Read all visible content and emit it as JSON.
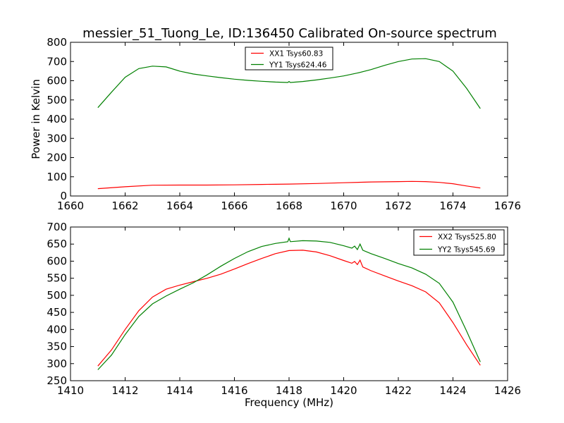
{
  "figure": {
    "title": "messier_51_Tuong_Le, ID:136450 Calibrated On-source spectrum"
  },
  "chart_data": [
    {
      "type": "line",
      "title": "messier_51_Tuong_Le, ID:136450 Calibrated On-source spectrum",
      "xlabel": "",
      "ylabel": "Power in Kelvin",
      "xlim": [
        1660,
        1676
      ],
      "ylim": [
        0,
        800
      ],
      "xticks": [
        "1660",
        "1662",
        "1664",
        "1666",
        "1668",
        "1670",
        "1672",
        "1674",
        "1676"
      ],
      "yticks": [
        "0",
        "100",
        "200",
        "300",
        "400",
        "500",
        "600",
        "700",
        "800"
      ],
      "grid": false,
      "legend_position": "top-center",
      "series": [
        {
          "name": "XX1 Tsys60.83",
          "color": "#ff0000",
          "points": [
            [
              1661,
              38
            ],
            [
              1662,
              48
            ],
            [
              1663,
              56
            ],
            [
              1664,
              57
            ],
            [
              1665,
              57
            ],
            [
              1666,
              58
            ],
            [
              1667,
              60
            ],
            [
              1668,
              62
            ],
            [
              1669,
              65
            ],
            [
              1670,
              69
            ],
            [
              1671,
              73
            ],
            [
              1672,
              75
            ],
            [
              1672.5,
              76
            ],
            [
              1673,
              75
            ],
            [
              1673.5,
              71
            ],
            [
              1674,
              64
            ],
            [
              1674.5,
              52
            ],
            [
              1675,
              42
            ]
          ]
        },
        {
          "name": "YY1 Tsys624.46",
          "color": "#008000",
          "points": [
            [
              1661,
              460
            ],
            [
              1661.5,
              540
            ],
            [
              1662,
              618
            ],
            [
              1662.5,
              663
            ],
            [
              1663,
              676
            ],
            [
              1663.5,
              672
            ],
            [
              1664,
              650
            ],
            [
              1664.5,
              635
            ],
            [
              1665,
              625
            ],
            [
              1665.5,
              616
            ],
            [
              1666,
              608
            ],
            [
              1666.5,
              602
            ],
            [
              1667,
              597
            ],
            [
              1667.5,
              593
            ],
            [
              1667.95,
              591
            ],
            [
              1668,
              596
            ],
            [
              1668.05,
              591
            ],
            [
              1668.5,
              596
            ],
            [
              1669,
              604
            ],
            [
              1669.5,
              614
            ],
            [
              1670,
              625
            ],
            [
              1670.5,
              640
            ],
            [
              1671,
              658
            ],
            [
              1671.5,
              680
            ],
            [
              1672,
              700
            ],
            [
              1672.5,
              713
            ],
            [
              1673,
              715
            ],
            [
              1673.5,
              700
            ],
            [
              1674,
              650
            ],
            [
              1674.5,
              560
            ],
            [
              1675,
              455
            ]
          ]
        }
      ]
    },
    {
      "type": "line",
      "title": "",
      "xlabel": "Frequency (MHz)",
      "ylabel": "",
      "xlim": [
        1410,
        1426
      ],
      "ylim": [
        250,
        700
      ],
      "xticks": [
        "1410",
        "1412",
        "1414",
        "1416",
        "1418",
        "1420",
        "1422",
        "1424",
        "1426"
      ],
      "yticks": [
        "250",
        "300",
        "350",
        "400",
        "450",
        "500",
        "550",
        "600",
        "650",
        "700"
      ],
      "grid": false,
      "legend_position": "top-right",
      "series": [
        {
          "name": "XX2 Tsys525.80",
          "color": "#ff0000",
          "points": [
            [
              1411,
              293
            ],
            [
              1411.5,
              340
            ],
            [
              1412,
              400
            ],
            [
              1412.5,
              455
            ],
            [
              1413,
              495
            ],
            [
              1413.5,
              518
            ],
            [
              1414,
              530
            ],
            [
              1414.5,
              540
            ],
            [
              1415,
              550
            ],
            [
              1415.5,
              562
            ],
            [
              1416,
              577
            ],
            [
              1416.5,
              593
            ],
            [
              1417,
              608
            ],
            [
              1417.5,
              622
            ],
            [
              1418,
              631
            ],
            [
              1418.5,
              632
            ],
            [
              1419,
              627
            ],
            [
              1419.5,
              616
            ],
            [
              1420,
              602
            ],
            [
              1420.3,
              594
            ],
            [
              1420.4,
              599
            ],
            [
              1420.5,
              590
            ],
            [
              1420.6,
              603
            ],
            [
              1420.7,
              583
            ],
            [
              1421,
              572
            ],
            [
              1421.5,
              557
            ],
            [
              1422,
              542
            ],
            [
              1422.5,
              528
            ],
            [
              1423,
              510
            ],
            [
              1423.5,
              478
            ],
            [
              1424,
              420
            ],
            [
              1424.5,
              355
            ],
            [
              1425,
              295
            ]
          ]
        },
        {
          "name": "YY2 Tsys545.69",
          "color": "#008000",
          "points": [
            [
              1411,
              282
            ],
            [
              1411.5,
              325
            ],
            [
              1412,
              385
            ],
            [
              1412.5,
              438
            ],
            [
              1413,
              475
            ],
            [
              1413.5,
              498
            ],
            [
              1414,
              518
            ],
            [
              1414.5,
              537
            ],
            [
              1415,
              560
            ],
            [
              1415.5,
              585
            ],
            [
              1416,
              608
            ],
            [
              1416.5,
              628
            ],
            [
              1417,
              643
            ],
            [
              1417.5,
              652
            ],
            [
              1417.95,
              657
            ],
            [
              1418,
              667
            ],
            [
              1418.05,
              657
            ],
            [
              1418.5,
              660
            ],
            [
              1419,
              659
            ],
            [
              1419.5,
              655
            ],
            [
              1420,
              645
            ],
            [
              1420.3,
              638
            ],
            [
              1420.4,
              644
            ],
            [
              1420.5,
              634
            ],
            [
              1420.6,
              650
            ],
            [
              1420.7,
              632
            ],
            [
              1421,
              622
            ],
            [
              1421.5,
              608
            ],
            [
              1422,
              593
            ],
            [
              1422.5,
              580
            ],
            [
              1423,
              562
            ],
            [
              1423.5,
              535
            ],
            [
              1424,
              480
            ],
            [
              1424.5,
              395
            ],
            [
              1425,
              305
            ]
          ]
        }
      ]
    }
  ]
}
